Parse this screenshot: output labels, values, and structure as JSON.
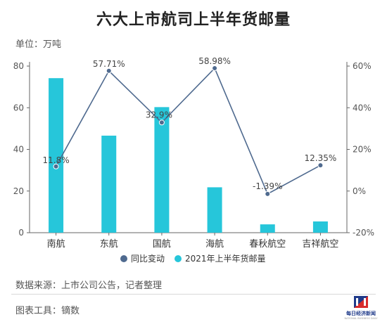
{
  "title": "六大上市航司上半年货邮量",
  "unit_label": "单位：万吨",
  "source": "数据来源：上市公司公告，记者整理",
  "tool": "图表工具：镝数",
  "logo": {
    "text": "每日经济新闻",
    "sub": "NATIONAL BUSINESS DAILY"
  },
  "colors": {
    "bar": "#26c6da",
    "line": "#4f6a8f",
    "axis": "#555555",
    "grid": "#e6e6e6"
  },
  "chart_data": {
    "type": "bar+line",
    "categories": [
      "南航",
      "东航",
      "国航",
      "海航",
      "春秋航空",
      "吉祥航空"
    ],
    "series": [
      {
        "name": "2021年上半年货邮量",
        "type": "bar",
        "axis": "left",
        "values": [
          74.2,
          46.6,
          60.3,
          21.8,
          4.0,
          5.4
        ]
      },
      {
        "name": "同比变动",
        "type": "line",
        "axis": "right",
        "values": [
          11.8,
          57.71,
          32.9,
          58.98,
          -1.39,
          12.35
        ],
        "labels": [
          "11.8%",
          "57.71%",
          "32.9%",
          "58.98%",
          "-1.39%",
          "12.35%"
        ]
      }
    ],
    "y_left": {
      "min": 0,
      "max": 80,
      "ticks": [
        0,
        20,
        40,
        60,
        80
      ]
    },
    "y_right": {
      "min": -20,
      "max": 60,
      "ticks": [
        -20,
        0,
        20,
        40,
        60
      ],
      "tick_labels": [
        "-20%",
        "0%",
        "20%",
        "40%",
        "60%"
      ]
    },
    "legend_position": "bottom",
    "grid": false
  }
}
